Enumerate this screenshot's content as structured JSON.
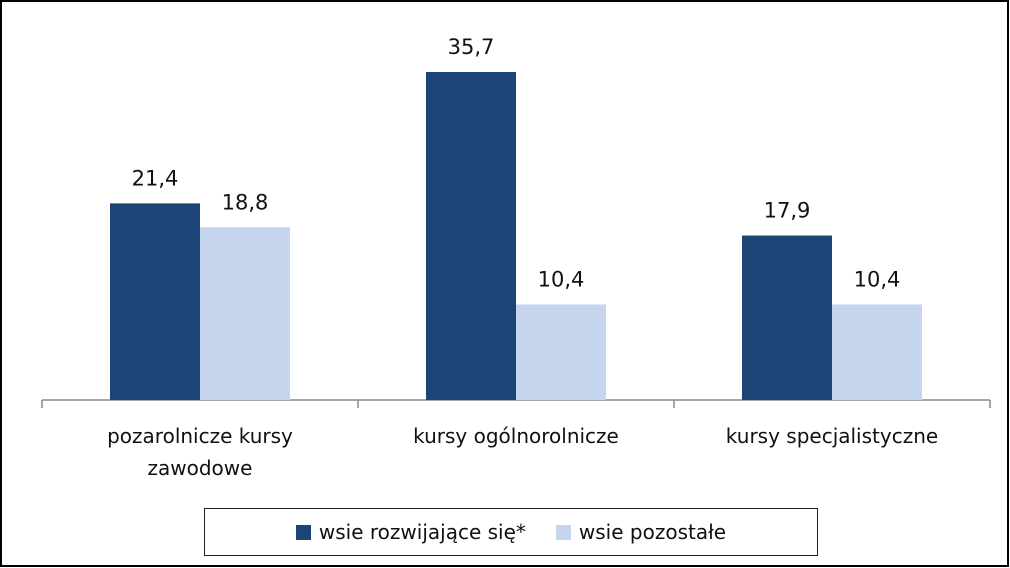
{
  "chart_data": {
    "type": "bar",
    "categories": [
      "pozarolnicze kursy zawodowe",
      "kursy ogólnorolnicze",
      "kursy specjalistyczne"
    ],
    "series": [
      {
        "name": "wsie rozwijające się*",
        "color": "#1c4476",
        "values": [
          21.4,
          35.7,
          17.9
        ],
        "value_labels": [
          "21,4",
          "35,7",
          "17,9"
        ]
      },
      {
        "name": "wsie pozostałe",
        "color": "#c6d5ee",
        "values": [
          18.8,
          10.4,
          10.4
        ],
        "value_labels": [
          "18,8",
          "10,4",
          "10,4"
        ]
      }
    ],
    "legend": "bottom"
  }
}
